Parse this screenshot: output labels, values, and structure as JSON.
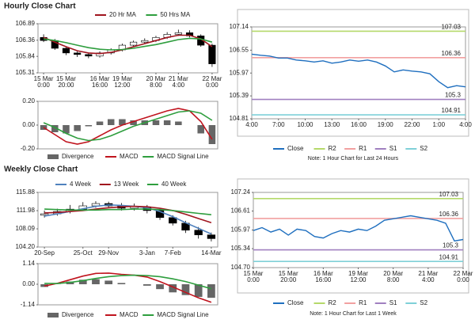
{
  "chart_data": [
    {
      "type": "candlestick",
      "title": "Hourly Close Chart",
      "categories": [
        [
          "15 Mar",
          "0:00"
        ],
        null,
        [
          "15 Mar",
          "20:00"
        ],
        null,
        null,
        [
          "16 Mar",
          "16:00"
        ],
        null,
        [
          "19 Mar",
          "12:00"
        ],
        null,
        null,
        [
          "20 Mar",
          "8:00"
        ],
        null,
        [
          "21 Mar",
          "4:00"
        ],
        null,
        null,
        [
          "22 Mar",
          "0:00"
        ]
      ],
      "open": [
        106.45,
        106.35,
        106.1,
        105.95,
        105.9,
        105.85,
        105.95,
        106.05,
        106.2,
        106.3,
        106.35,
        106.45,
        106.55,
        106.6,
        106.5,
        106.2
      ],
      "high": [
        106.55,
        106.4,
        106.15,
        106.0,
        105.95,
        106.0,
        106.1,
        106.25,
        106.35,
        106.42,
        106.5,
        106.62,
        106.7,
        106.68,
        106.55,
        106.25
      ],
      "low": [
        106.3,
        106.05,
        105.88,
        105.82,
        105.78,
        105.8,
        105.9,
        106.0,
        106.15,
        106.25,
        106.3,
        106.4,
        106.5,
        106.45,
        106.15,
        105.5
      ],
      "close": [
        106.35,
        106.1,
        105.95,
        105.9,
        105.85,
        105.95,
        106.05,
        106.2,
        106.3,
        106.35,
        106.45,
        106.55,
        106.6,
        106.5,
        106.2,
        105.6
      ],
      "series": [
        {
          "name": "20 Hr MA",
          "color": "#a0141e",
          "values": [
            106.45,
            106.3,
            106.15,
            106.02,
            105.95,
            105.93,
            105.97,
            106.05,
            106.15,
            106.25,
            106.35,
            106.45,
            106.52,
            106.52,
            106.4,
            106.15
          ]
        },
        {
          "name": "50 Hrs MA",
          "color": "#2e9e3e",
          "values": [
            106.4,
            106.35,
            106.28,
            106.2,
            106.12,
            106.07,
            106.05,
            106.06,
            106.1,
            106.16,
            106.22,
            106.3,
            106.38,
            106.42,
            106.4,
            106.3
          ]
        }
      ],
      "ylim": [
        105.31,
        106.89
      ],
      "yticks": [
        105.31,
        105.84,
        106.36,
        106.89
      ]
    },
    {
      "type": "macd",
      "series": [
        {
          "name": "Divergence",
          "type": "bar",
          "color": "#666666",
          "values": [
            -0.04,
            -0.06,
            -0.07,
            -0.05,
            -0.01,
            0.03,
            0.05,
            0.05,
            0.04,
            0.04,
            0.04,
            0.04,
            0.03,
            0.0,
            -0.07,
            -0.16
          ]
        },
        {
          "name": "MACD",
          "type": "line",
          "color": "#c0141e",
          "values": [
            -0.02,
            -0.08,
            -0.14,
            -0.16,
            -0.14,
            -0.09,
            -0.04,
            0.0,
            0.03,
            0.06,
            0.09,
            0.12,
            0.14,
            0.12,
            0.03,
            -0.12
          ]
        },
        {
          "name": "MACD Signal Line",
          "type": "line",
          "color": "#2e9e3e",
          "values": [
            0.02,
            -0.02,
            -0.07,
            -0.11,
            -0.13,
            -0.12,
            -0.09,
            -0.05,
            -0.01,
            0.02,
            0.05,
            0.08,
            0.11,
            0.12,
            0.1,
            0.04
          ]
        }
      ],
      "ylim": [
        -0.2,
        0.2
      ],
      "yticks": [
        {
          "value": -0.2,
          "label": "-0.20"
        },
        {
          "value": 0,
          "label": "0.00"
        },
        {
          "value": 0.2,
          "label": "0.20"
        }
      ]
    },
    {
      "type": "line",
      "note": "Note: 1 Hour Chart for Last 24 Hours",
      "categories": [
        "4:00",
        null,
        null,
        "7:00",
        null,
        null,
        "10:00",
        null,
        null,
        "13:00",
        null,
        null,
        "16:00",
        null,
        null,
        "19:00",
        null,
        null,
        "22:00",
        null,
        null,
        "1:00",
        null,
        null,
        "4:00"
      ],
      "series": [
        {
          "name": "Close",
          "color": "#1f6fbf",
          "values": [
            106.45,
            106.42,
            106.4,
            106.35,
            106.35,
            106.3,
            106.28,
            106.25,
            106.28,
            106.22,
            106.25,
            106.3,
            106.27,
            106.3,
            106.25,
            106.15,
            106.0,
            106.05,
            106.02,
            106.0,
            105.95,
            105.75,
            105.6,
            105.65,
            105.62
          ]
        }
      ],
      "levels": [
        {
          "name": "R2",
          "value": 107.03,
          "color": "#b5d96a"
        },
        {
          "name": "R1",
          "value": 106.36,
          "color": "#f2a0a0"
        },
        {
          "name": "S1",
          "value": 105.3,
          "color": "#a080c0"
        },
        {
          "name": "S2",
          "value": 104.91,
          "color": "#7fd0d8"
        }
      ],
      "ylim": [
        104.81,
        107.14
      ],
      "yticks": [
        104.81,
        105.39,
        105.97,
        106.55,
        107.14
      ]
    },
    {
      "type": "candlestick",
      "title": "Weekly Close Chart",
      "categories": [
        "20-Sep",
        null,
        null,
        "25-Oct",
        null,
        "29-Nov",
        null,
        null,
        "3-Jan",
        null,
        "7-Feb",
        null,
        null,
        "14-Mar"
      ],
      "open": [
        111.0,
        111.3,
        111.8,
        112.3,
        113.0,
        113.5,
        113.0,
        112.5,
        112.8,
        112.0,
        110.5,
        109.3,
        107.8,
        106.8
      ],
      "high": [
        112.0,
        112.4,
        113.2,
        113.8,
        114.0,
        113.9,
        113.6,
        113.5,
        113.2,
        112.4,
        111.0,
        109.8,
        108.5,
        107.3
      ],
      "low": [
        110.5,
        110.9,
        111.4,
        112.0,
        112.6,
        112.5,
        112.0,
        112.0,
        111.4,
        110.0,
        108.8,
        107.2,
        106.0,
        105.4
      ],
      "close": [
        111.3,
        111.8,
        112.3,
        113.0,
        113.5,
        113.0,
        112.5,
        112.8,
        112.0,
        110.5,
        109.3,
        107.8,
        106.8,
        106.0
      ],
      "series": [
        {
          "name": "4 Week",
          "color": "#4f81bd",
          "values": [
            110.8,
            111.3,
            111.8,
            112.4,
            112.9,
            113.2,
            113.1,
            112.9,
            112.6,
            111.8,
            110.7,
            109.4,
            108.2,
            107.0
          ]
        },
        {
          "name": "13 Week",
          "color": "#a0141e",
          "values": [
            111.5,
            111.6,
            111.8,
            112.0,
            112.3,
            112.6,
            112.8,
            112.9,
            112.8,
            112.5,
            112.0,
            111.2,
            110.3,
            109.4
          ]
        },
        {
          "name": "40 Week",
          "color": "#2e9e3e",
          "values": [
            112.3,
            112.2,
            112.1,
            112.1,
            112.1,
            112.2,
            112.2,
            112.3,
            112.3,
            112.2,
            112.0,
            111.7,
            111.4,
            111.1
          ]
        }
      ],
      "ylim": [
        104.2,
        115.88
      ],
      "yticks": [
        {
          "value": 104.2,
          "label": "104.20"
        },
        108.09,
        111.98,
        115.88
      ]
    },
    {
      "type": "macd",
      "series": [
        {
          "name": "Divergence",
          "type": "bar",
          "color": "#666666",
          "values": [
            -0.15,
            0.01,
            0.15,
            0.25,
            0.28,
            0.2,
            0.07,
            0.0,
            -0.08,
            -0.27,
            -0.45,
            -0.6,
            -0.7,
            -0.75
          ]
        },
        {
          "name": "MACD",
          "type": "line",
          "color": "#c0141e",
          "values": [
            -0.1,
            0.05,
            0.25,
            0.45,
            0.6,
            0.62,
            0.55,
            0.5,
            0.4,
            0.15,
            -0.15,
            -0.45,
            -0.75,
            -1.0
          ]
        },
        {
          "name": "MACD Signal Line",
          "type": "line",
          "color": "#2e9e3e",
          "values": [
            0.05,
            0.04,
            0.1,
            0.2,
            0.32,
            0.42,
            0.48,
            0.5,
            0.48,
            0.42,
            0.3,
            0.15,
            -0.05,
            -0.25
          ]
        }
      ],
      "ylim": [
        -1.14,
        1.14
      ],
      "yticks": [
        {
          "value": -1.14,
          "label": "-1.14"
        },
        {
          "value": 0,
          "label": "0.00"
        },
        {
          "value": 1.14,
          "label": "1.14"
        }
      ]
    },
    {
      "type": "line",
      "note": "Note: 1 Hour Chart for Last 1 Week",
      "categories": [
        [
          "15 Mar",
          "0:00"
        ],
        null,
        null,
        null,
        [
          "15 Mar",
          "20:00"
        ],
        null,
        null,
        null,
        [
          "16 Mar",
          "16:00"
        ],
        null,
        null,
        null,
        [
          "19 Mar",
          "12:00"
        ],
        null,
        null,
        null,
        [
          "20 Mar",
          "8:00"
        ],
        null,
        null,
        null,
        [
          "21 Mar",
          "4:00"
        ],
        null,
        null,
        null,
        [
          "22 Mar",
          "0:00"
        ]
      ],
      "series": [
        {
          "name": "Close",
          "color": "#1f6fbf",
          "values": [
            105.95,
            106.05,
            105.9,
            106.0,
            105.8,
            106.0,
            105.95,
            105.75,
            105.7,
            105.85,
            105.95,
            105.9,
            106.0,
            105.95,
            106.1,
            106.3,
            106.35,
            106.4,
            106.45,
            106.4,
            106.35,
            106.3,
            106.2,
            105.6,
            105.65
          ]
        }
      ],
      "levels": [
        {
          "name": "R2",
          "value": 107.03,
          "color": "#b5d96a"
        },
        {
          "name": "R1",
          "value": 106.36,
          "color": "#f2a0a0"
        },
        {
          "name": "S1",
          "value": 105.3,
          "color": "#a080c0"
        },
        {
          "name": "S2",
          "value": 104.91,
          "color": "#7fd0d8"
        }
      ],
      "ylim": [
        104.7,
        107.24
      ],
      "yticks": [
        {
          "value": 104.7,
          "label": "104.70"
        },
        105.34,
        105.97,
        106.61,
        107.24
      ]
    }
  ]
}
